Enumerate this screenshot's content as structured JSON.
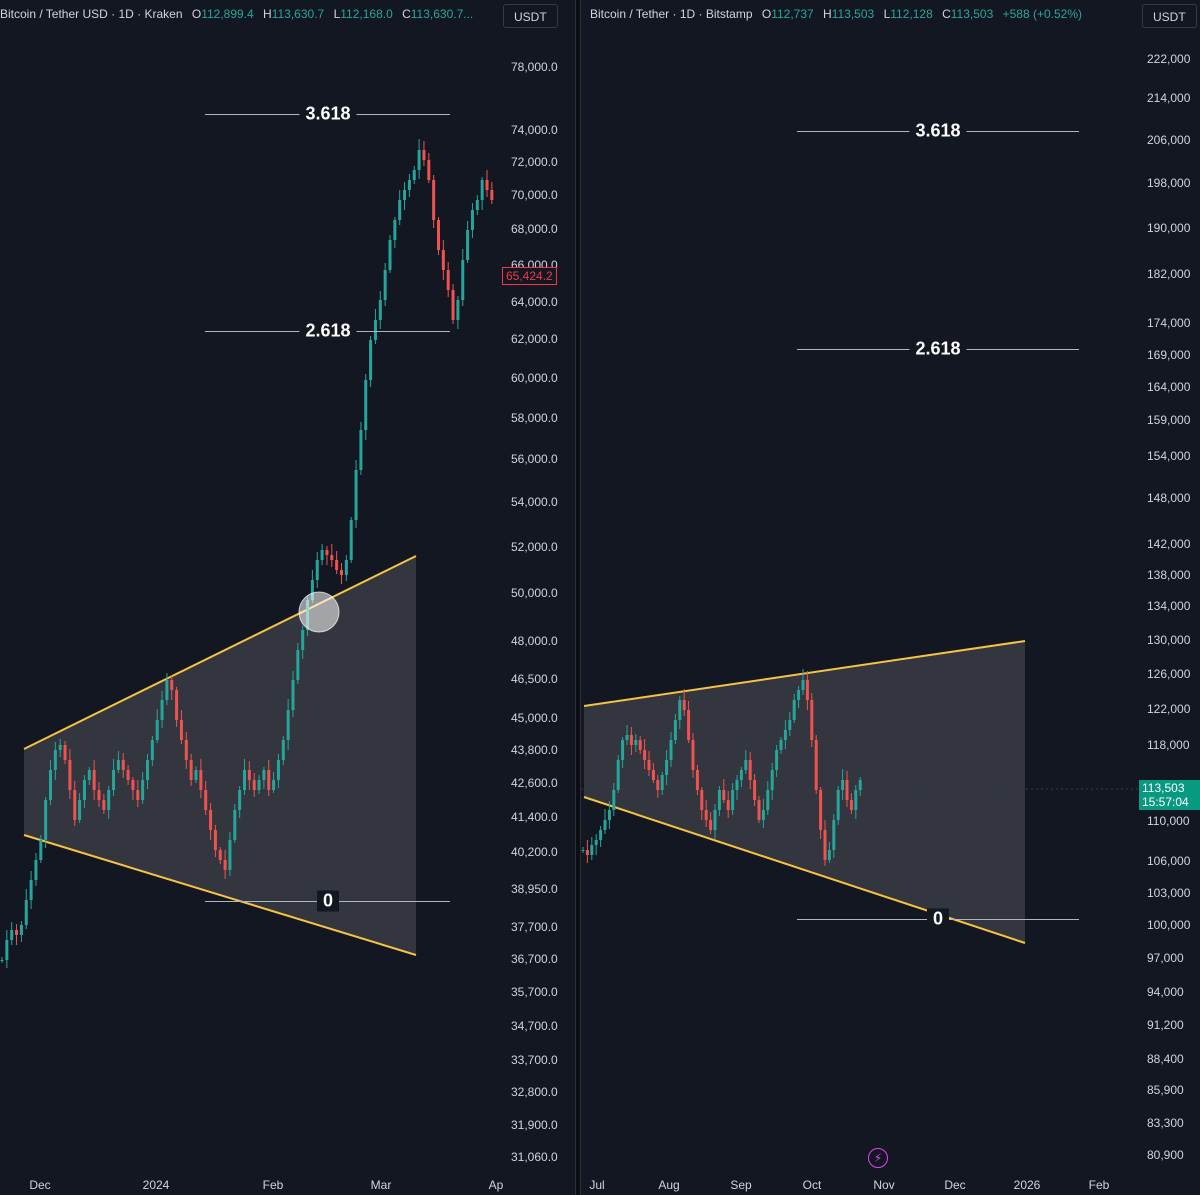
{
  "left_chart": {
    "symbol": "Bitcoin / Tether USD · 1D · Kraken",
    "ohlc": {
      "o_label": "O",
      "o": "112,899.4",
      "h_label": "H",
      "h": "113,630.7",
      "l_label": "L",
      "l": "112,168.0",
      "c_label": "C",
      "c": "113,630.7..."
    },
    "currency": "USDT",
    "price_ticks": [
      "78,000.0",
      "74,000.0",
      "72,000.0",
      "70,000.0",
      "68,000.0",
      "66,000.0",
      "64,000.0",
      "62,000.0",
      "60,000.0",
      "58,000.0",
      "56,000.0",
      "54,000.0",
      "52,000.0",
      "50,000.0",
      "48,000.0",
      "46,500.0",
      "45,000.0",
      "43,800.0",
      "42,600.0",
      "41,400.0",
      "40,200.0",
      "38,950.0",
      "37,700.0",
      "36,700.0",
      "35,700.0",
      "34,700.0",
      "33,700.0",
      "32,800.0",
      "31,900.0",
      "31,060.0"
    ],
    "time_ticks": [
      "Dec",
      "2024",
      "Feb",
      "Mar",
      "Ap"
    ],
    "last_price_tag": "65,424.2",
    "fib_levels": [
      "3.618",
      "2.618",
      "0"
    ]
  },
  "right_chart": {
    "symbol": "Bitcoin / Tether · 1D · Bitstamp",
    "ohlc": {
      "o_label": "O",
      "o": "112,737",
      "h_label": "H",
      "h": "113,503",
      "l_label": "L",
      "l": "112,128",
      "c_label": "C",
      "c": "113,503",
      "change": "+588 (+0.52%)"
    },
    "currency": "USDT",
    "price_ticks": [
      "222,000",
      "214,000",
      "206,000",
      "198,000",
      "190,000",
      "182,000",
      "174,000",
      "169,000",
      "164,000",
      "159,000",
      "154,000",
      "148,000",
      "142,000",
      "138,000",
      "134,000",
      "130,000",
      "126,000",
      "122,000",
      "118,000",
      "110,000",
      "106,000",
      "103,000",
      "100,000",
      "97,000",
      "94,000",
      "91,200",
      "88,400",
      "85,900",
      "83,300",
      "80,900"
    ],
    "time_ticks": [
      "Jul",
      "Aug",
      "Sep",
      "Oct",
      "Nov",
      "Dec",
      "2026",
      "Feb"
    ],
    "last_price_tag": "113,503",
    "countdown": "15:57:04",
    "fib_levels": [
      "3.618",
      "2.618",
      "0"
    ]
  },
  "colors": {
    "background": "#131722",
    "up": "#26a69a",
    "down": "#ef5350",
    "trendline": "#f6c343",
    "fib_line": "#b2b5be"
  }
}
